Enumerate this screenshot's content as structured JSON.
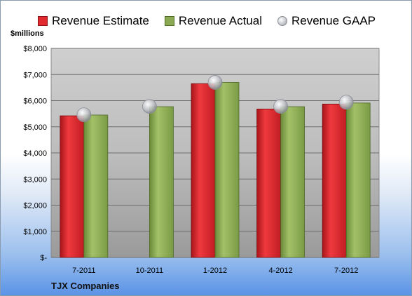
{
  "colors": {
    "estimate": "#e02a2f",
    "actual": "#8aa952",
    "gaap": "#c4c6cc"
  },
  "legend": {
    "items": [
      {
        "label": "Revenue Estimate",
        "color": "#e02a2f",
        "shape": "square"
      },
      {
        "label": "Revenue Actual",
        "color": "#8aa952",
        "shape": "square"
      },
      {
        "label": "Revenue GAAP",
        "color": "#c4c6cc",
        "shape": "circle"
      }
    ]
  },
  "units_label": "$millions",
  "company_label": "TJX Companies",
  "chart_data": {
    "type": "bar",
    "categories": [
      "7-2011",
      "10-2011",
      "1-2012",
      "4-2012",
      "7-2012"
    ],
    "series": [
      {
        "name": "Revenue Estimate",
        "kind": "bar",
        "values": [
          5420,
          null,
          6650,
          5680,
          5870
        ]
      },
      {
        "name": "Revenue Actual",
        "kind": "bar",
        "values": [
          5450,
          5770,
          6700,
          5770,
          5910
        ]
      },
      {
        "name": "Revenue GAAP",
        "kind": "marker",
        "values": [
          5460,
          5780,
          6700,
          5780,
          5940
        ]
      }
    ],
    "ylim": [
      0,
      8000
    ],
    "yticks": [
      0,
      1000,
      2000,
      3000,
      4000,
      5000,
      6000,
      7000,
      8000
    ],
    "ytick_labels": [
      "$-",
      "$1,000",
      "$2,000",
      "$3,000",
      "$4,000",
      "$5,000",
      "$6,000",
      "$7,000",
      "$8,000"
    ],
    "grid": true,
    "legend_position": "top"
  }
}
